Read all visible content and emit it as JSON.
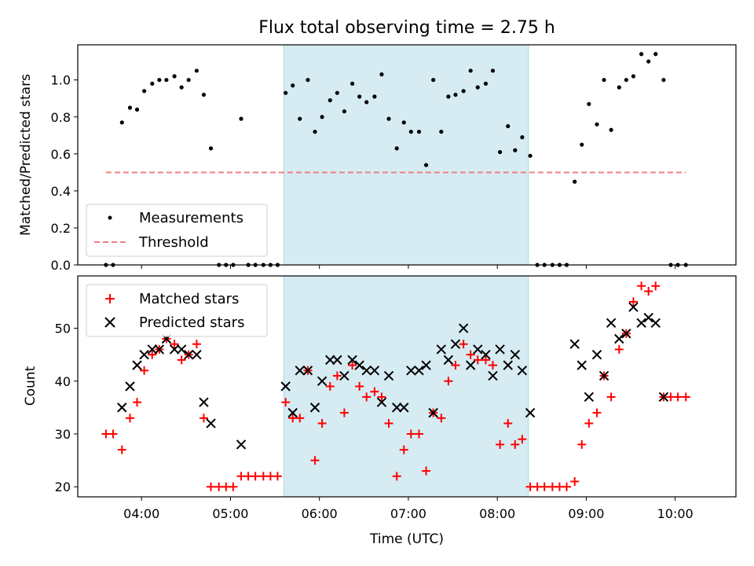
{
  "chart_data": [
    {
      "type": "scatter",
      "title": "Flux total observing time = 2.75 h",
      "xlabel": "",
      "ylabel": "Matched/Predicted stars",
      "xlim_hours": [
        3.283,
        10.683
      ],
      "ylim": [
        0,
        1.19
      ],
      "yticks": [
        0.0,
        0.2,
        0.4,
        0.6,
        0.8,
        1.0
      ],
      "ytick_labels": [
        "0.0",
        "0.2",
        "0.4",
        "0.6",
        "0.8",
        "1.0"
      ],
      "highlight_span_hours": [
        5.6,
        8.35
      ],
      "legend_position": "lower-left",
      "series": [
        {
          "name": "Measurements",
          "kind": "points",
          "color": "#000000",
          "x": [
            3.6,
            3.68,
            3.78,
            3.87,
            3.95,
            4.03,
            4.12,
            4.2,
            4.28,
            4.37,
            4.45,
            4.53,
            4.62,
            4.7,
            4.78,
            4.87,
            4.95,
            5.03,
            5.12,
            5.2,
            5.28,
            5.37,
            5.45,
            5.53,
            5.62,
            5.7,
            5.78,
            5.87,
            5.95,
            6.03,
            6.12,
            6.2,
            6.28,
            6.37,
            6.45,
            6.53,
            6.62,
            6.7,
            6.78,
            6.87,
            6.95,
            7.03,
            7.12,
            7.2,
            7.28,
            7.37,
            7.45,
            7.53,
            7.62,
            7.7,
            7.78,
            7.87,
            7.95,
            8.03,
            8.12,
            8.2,
            8.28,
            8.37,
            8.45,
            8.53,
            8.62,
            8.7,
            8.78,
            8.87,
            8.95,
            9.03,
            9.12,
            9.2,
            9.28,
            9.37,
            9.45,
            9.53,
            9.62,
            9.7,
            9.78,
            9.87,
            9.95,
            10.03,
            10.12
          ],
          "y": [
            0.0,
            0.0,
            0.77,
            0.85,
            0.84,
            0.94,
            0.98,
            1.0,
            1.0,
            1.02,
            0.96,
            1.0,
            1.05,
            0.92,
            0.63,
            0.0,
            0.0,
            0.0,
            0.79,
            0.0,
            0.0,
            0.0,
            0.0,
            0.0,
            0.93,
            0.97,
            0.79,
            1.0,
            0.72,
            0.8,
            0.89,
            0.93,
            0.83,
            0.98,
            0.91,
            0.88,
            0.91,
            1.03,
            0.79,
            0.63,
            0.77,
            0.72,
            0.72,
            0.54,
            1.0,
            0.72,
            0.91,
            0.92,
            0.94,
            1.05,
            0.96,
            0.98,
            1.05,
            0.61,
            0.75,
            0.62,
            0.69,
            0.59,
            0.0,
            0.0,
            0.0,
            0.0,
            0.0,
            0.45,
            0.65,
            0.87,
            0.76,
            1.0,
            0.73,
            0.96,
            1.0,
            1.02,
            1.14,
            1.1,
            1.14,
            1.0,
            0.0,
            0.0,
            0.0
          ]
        },
        {
          "name": "Threshold",
          "kind": "dashed-line",
          "color": "#f08080",
          "x": [
            3.6,
            10.12
          ],
          "y": [
            0.5,
            0.5
          ]
        }
      ]
    },
    {
      "type": "scatter",
      "title": "",
      "xlabel": "Time (UTC)",
      "ylabel": "Count",
      "xlim_hours": [
        3.283,
        10.683
      ],
      "ylim": [
        18.1,
        59.9
      ],
      "xticks_hours": [
        4,
        5,
        6,
        7,
        8,
        9,
        10
      ],
      "xtick_labels": [
        "04:00",
        "05:00",
        "06:00",
        "07:00",
        "08:00",
        "09:00",
        "10:00"
      ],
      "yticks": [
        20,
        30,
        40,
        50
      ],
      "ytick_labels": [
        "20",
        "30",
        "40",
        "50"
      ],
      "highlight_span_hours": [
        5.6,
        8.35
      ],
      "legend_position": "upper-left",
      "series": [
        {
          "name": "Matched stars",
          "kind": "plus",
          "color": "#ff0000",
          "x": [
            3.6,
            3.68,
            3.78,
            3.87,
            3.95,
            4.03,
            4.12,
            4.2,
            4.28,
            4.37,
            4.45,
            4.53,
            4.62,
            4.7,
            4.78,
            4.87,
            4.95,
            5.03,
            5.12,
            5.2,
            5.28,
            5.37,
            5.45,
            5.53,
            5.62,
            5.7,
            5.78,
            5.87,
            5.95,
            6.03,
            6.12,
            6.2,
            6.28,
            6.37,
            6.45,
            6.53,
            6.62,
            6.7,
            6.78,
            6.87,
            6.95,
            7.03,
            7.12,
            7.2,
            7.28,
            7.37,
            7.45,
            7.53,
            7.62,
            7.7,
            7.78,
            7.87,
            7.95,
            8.03,
            8.12,
            8.2,
            8.28,
            8.37,
            8.45,
            8.53,
            8.62,
            8.7,
            8.78,
            8.87,
            8.95,
            9.03,
            9.12,
            9.2,
            9.28,
            9.37,
            9.45,
            9.53,
            9.62,
            9.7,
            9.78,
            9.87,
            9.95,
            10.03,
            10.12
          ],
          "y": [
            30,
            30,
            27,
            33,
            36,
            42,
            45,
            46,
            48,
            47,
            44,
            45,
            47,
            33,
            20,
            20,
            20,
            20,
            22,
            22,
            22,
            22,
            22,
            22,
            36,
            33,
            33,
            42,
            25,
            32,
            39,
            41,
            34,
            43,
            39,
            37,
            38,
            37,
            32,
            22,
            27,
            30,
            30,
            23,
            34,
            33,
            40,
            43,
            47,
            45,
            44,
            44,
            43,
            28,
            32,
            28,
            29,
            20,
            20,
            20,
            20,
            20,
            20,
            21,
            28,
            32,
            34,
            41,
            37,
            46,
            49,
            55,
            58,
            57,
            58,
            37,
            37,
            37,
            37
          ]
        },
        {
          "name": "Predicted stars",
          "kind": "x",
          "color": "#000000",
          "x": [
            3.78,
            3.87,
            3.95,
            4.03,
            4.12,
            4.2,
            4.28,
            4.37,
            4.45,
            4.53,
            4.62,
            4.7,
            4.78,
            5.12,
            5.62,
            5.7,
            5.78,
            5.87,
            5.95,
            6.03,
            6.12,
            6.2,
            6.28,
            6.37,
            6.45,
            6.53,
            6.62,
            6.7,
            6.78,
            6.87,
            6.95,
            7.03,
            7.12,
            7.2,
            7.28,
            7.37,
            7.45,
            7.53,
            7.62,
            7.7,
            7.78,
            7.87,
            7.95,
            8.03,
            8.12,
            8.2,
            8.28,
            8.37,
            8.87,
            8.95,
            9.03,
            9.12,
            9.2,
            9.28,
            9.37,
            9.45,
            9.53,
            9.62,
            9.7,
            9.78,
            9.87
          ],
          "y": [
            35,
            39,
            43,
            45,
            46,
            46,
            48,
            46,
            46,
            45,
            45,
            36,
            32,
            28,
            39,
            34,
            42,
            42,
            35,
            40,
            44,
            44,
            41,
            44,
            43,
            42,
            42,
            36,
            41,
            35,
            35,
            42,
            42,
            43,
            34,
            46,
            44,
            47,
            50,
            43,
            46,
            45,
            41,
            46,
            43,
            45,
            42,
            34,
            47,
            43,
            37,
            45,
            41,
            51,
            48,
            49,
            54,
            51,
            52,
            51,
            37
          ]
        }
      ]
    }
  ]
}
